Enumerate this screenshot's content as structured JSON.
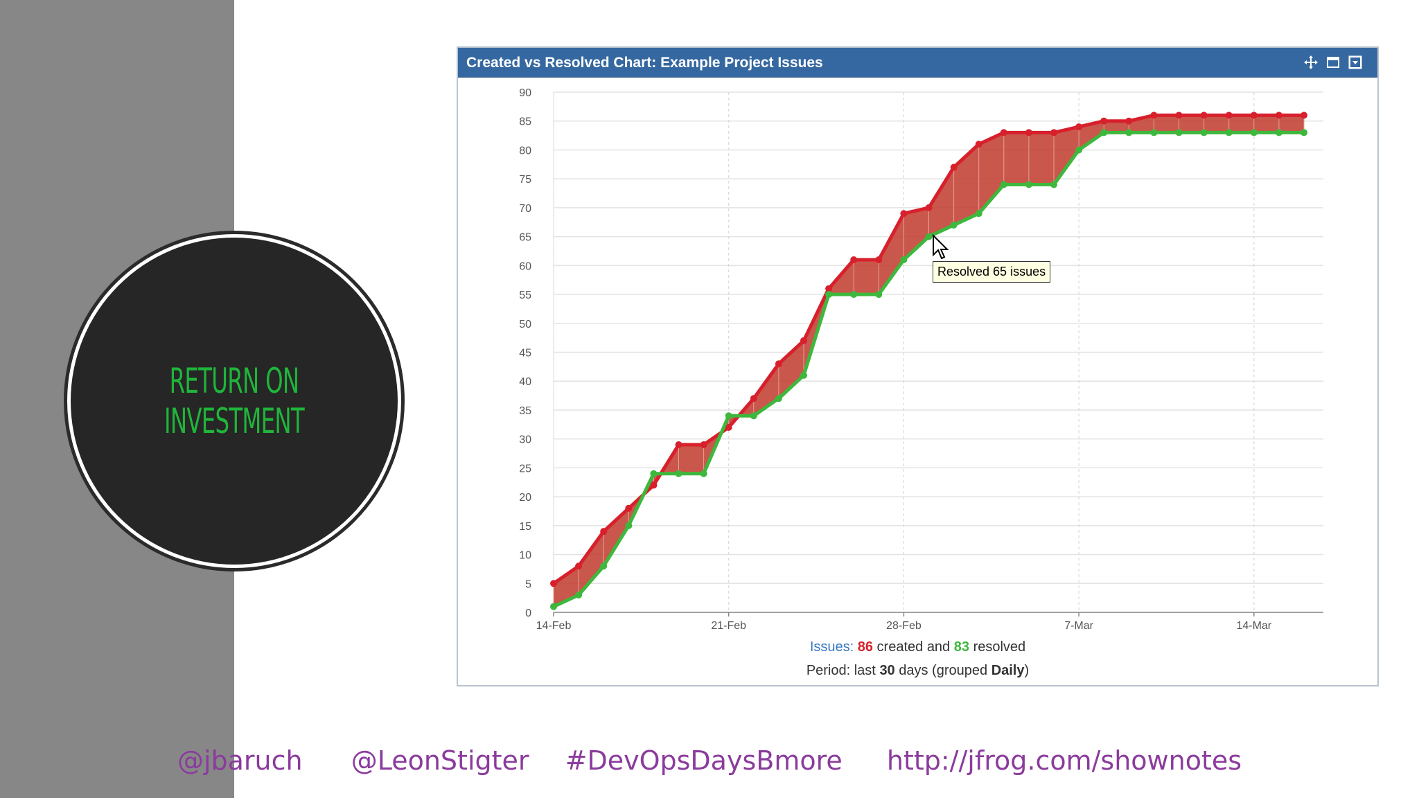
{
  "slide": {
    "title": "RETURN ON INVESTMENT",
    "handles": [
      "@jbaruch",
      "@LeonStigter",
      "#DevOpsDaysBmore",
      "http://jfrog.com/shownotes"
    ]
  },
  "panel": {
    "title": "Created vs Resolved Chart: Example Project Issues",
    "icons": [
      "move-icon",
      "maximize-icon",
      "dropdown-icon"
    ]
  },
  "tooltip": {
    "text": "Resolved 65 issues"
  },
  "footer": {
    "issues_label": "Issues:",
    "created_count": "86",
    "created_text": "created and",
    "resolved_count": "83",
    "resolved_text": "resolved",
    "period_prefix": "Period: last",
    "period_days": "30",
    "period_mid": "days (grouped",
    "period_group": "Daily",
    "period_suffix": ")"
  },
  "colors": {
    "created": "#d7202c",
    "resolved": "#3db83d",
    "fill": "#c0392b",
    "accent": "#3568a0",
    "issues_blue": "#3a78c1"
  },
  "chart_data": {
    "type": "area",
    "title": "Created vs Resolved Chart: Example Project Issues",
    "x_tick_labels": [
      "14-Feb",
      "21-Feb",
      "28-Feb",
      "7-Mar",
      "14-Mar"
    ],
    "x_tick_days": [
      0,
      7,
      14,
      21,
      28
    ],
    "x_start": "14-Feb",
    "ylim": [
      0,
      90
    ],
    "y_ticks": [
      0,
      5,
      10,
      15,
      20,
      25,
      30,
      35,
      40,
      45,
      50,
      55,
      60,
      65,
      70,
      75,
      80,
      85,
      90
    ],
    "grid": true,
    "series": [
      {
        "name": "created",
        "x": [
          0,
          1,
          2,
          3,
          4,
          5,
          6,
          7,
          8,
          9,
          10,
          11,
          12,
          13,
          14,
          15,
          16,
          17,
          18,
          19,
          20,
          21,
          22,
          23,
          24,
          25,
          26,
          27,
          28,
          29,
          30
        ],
        "values": [
          5,
          8,
          14,
          18,
          22,
          29,
          29,
          32,
          37,
          43,
          47,
          56,
          61,
          61,
          69,
          70,
          77,
          81,
          83,
          83,
          83,
          84,
          85,
          85,
          86,
          86,
          86,
          86,
          86,
          86,
          86
        ]
      },
      {
        "name": "resolved",
        "x": [
          0,
          1,
          2,
          3,
          4,
          5,
          6,
          7,
          8,
          9,
          10,
          11,
          12,
          13,
          14,
          15,
          16,
          17,
          18,
          19,
          20,
          21,
          22,
          23,
          24,
          25,
          26,
          27,
          28,
          29,
          30
        ],
        "values": [
          1,
          3,
          8,
          15,
          24,
          24,
          24,
          34,
          34,
          37,
          41,
          55,
          55,
          55,
          61,
          65,
          67,
          69,
          74,
          74,
          74,
          80,
          83,
          83,
          83,
          83,
          83,
          83,
          83,
          83,
          83
        ]
      }
    ]
  }
}
